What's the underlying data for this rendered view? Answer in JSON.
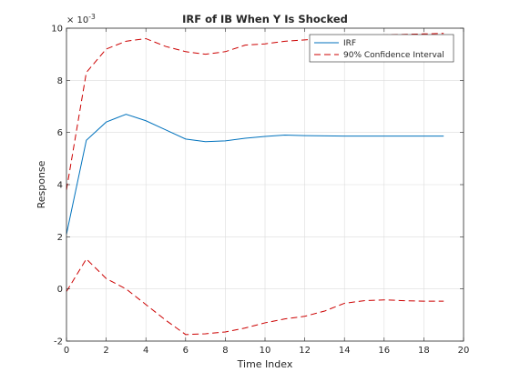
{
  "chart_data": {
    "type": "line",
    "title": "IRF of IB When Y Is Shocked",
    "xlabel": "Time Index",
    "ylabel": "Response",
    "y_exponent_base": "× 10",
    "y_exponent_power": "-3",
    "xlim": [
      0,
      20
    ],
    "ylim": [
      -2,
      10
    ],
    "x_ticks": [
      0,
      2,
      4,
      6,
      8,
      10,
      12,
      14,
      16,
      18,
      20
    ],
    "y_ticks": [
      -2,
      0,
      2,
      4,
      6,
      8,
      10
    ],
    "grid": true,
    "legend_position": "top-right",
    "x": [
      0,
      1,
      2,
      3,
      4,
      5,
      6,
      7,
      8,
      9,
      10,
      11,
      12,
      13,
      14,
      15,
      16,
      17,
      18,
      19
    ],
    "series": [
      {
        "name": "IRF",
        "color": "#0072BD",
        "style": "solid",
        "values": [
          2.1,
          5.7,
          6.4,
          6.7,
          6.45,
          6.1,
          5.75,
          5.65,
          5.68,
          5.78,
          5.85,
          5.9,
          5.88,
          5.87,
          5.86,
          5.86,
          5.86,
          5.86,
          5.86,
          5.86
        ]
      },
      {
        "name": "90% Confidence Interval",
        "color": "#CC0000",
        "style": "dashed",
        "values": [
          3.8,
          8.3,
          9.2,
          9.5,
          9.6,
          9.3,
          9.1,
          9.0,
          9.1,
          9.35,
          9.4,
          9.5,
          9.55,
          9.6,
          9.7,
          9.72,
          9.74,
          9.76,
          9.78,
          9.8
        ]
      },
      {
        "name": "",
        "color": "#CC0000",
        "style": "dashed",
        "legend": false,
        "values": [
          -0.1,
          1.15,
          0.4,
          0.0,
          -0.6,
          -1.2,
          -1.75,
          -1.72,
          -1.65,
          -1.5,
          -1.3,
          -1.15,
          -1.05,
          -0.85,
          -0.55,
          -0.45,
          -0.42,
          -0.45,
          -0.47,
          -0.47
        ]
      }
    ]
  }
}
